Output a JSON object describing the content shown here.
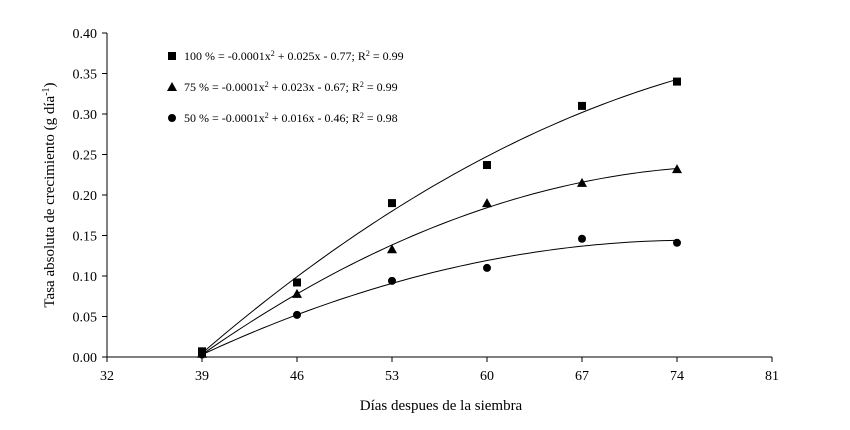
{
  "chart_data": {
    "type": "scatter",
    "xlabel": "Días despues de la siembra",
    "ylabel": "Tasa absoluta de crecimiento (g día⁻¹)",
    "xlim": [
      32,
      81
    ],
    "ylim": [
      0,
      0.4
    ],
    "xticks": [
      32,
      39,
      46,
      53,
      60,
      67,
      74,
      81
    ],
    "yticks": [
      0.0,
      0.05,
      0.1,
      0.15,
      0.2,
      0.25,
      0.3,
      0.35,
      0.4
    ],
    "ytick_labels": [
      "0.00",
      "0.05",
      "0.10",
      "0.15",
      "0.20",
      "0.25",
      "0.30",
      "0.35",
      "0.40"
    ],
    "grid": false,
    "legend_position": "top-left",
    "x": [
      39,
      46,
      53,
      60,
      67,
      74
    ],
    "series": [
      {
        "name": "100 %",
        "marker": "square",
        "equation": "100 % = -0.0001x² + 0.025x - 0.77; R² = 0.99",
        "values": [
          0.007,
          0.092,
          0.19,
          0.237,
          0.31,
          0.34
        ]
      },
      {
        "name": "75 %",
        "marker": "triangle",
        "equation": "75 % = -0.0001x² + 0.023x - 0.67; R² = 0.99",
        "values": [
          0.004,
          0.078,
          0.133,
          0.19,
          0.215,
          0.232
        ]
      },
      {
        "name": "50 %",
        "marker": "circle",
        "equation": "50 % = -0.0001x² + 0.016x - 0.46; R² = 0.98",
        "values": [
          0.003,
          0.052,
          0.094,
          0.11,
          0.146,
          0.141
        ]
      }
    ]
  }
}
